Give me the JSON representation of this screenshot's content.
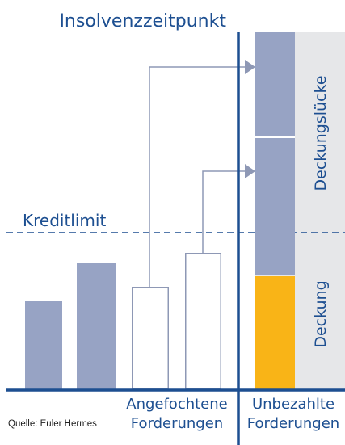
{
  "title": "Insolvenzzeitpunkt",
  "kreditlimit_label": "Kreditlimit",
  "deckungsluecke_label": "Deckungslücke",
  "deckung_label": "Deckung",
  "angefochtene_line1": "Angefochtene",
  "angefochtene_line2": "Forderungen",
  "unbezahlte_line1": "Unbezahlte",
  "unbezahlte_line2": "Forderungen",
  "source": "Quelle: Euler Hermes",
  "colors": {
    "navy": "#1d4f91",
    "bar_blue": "#97a3c4",
    "gold": "#f9b417",
    "grey_panel": "#e6e7e9",
    "arrow": "#8e98b5"
  }
}
